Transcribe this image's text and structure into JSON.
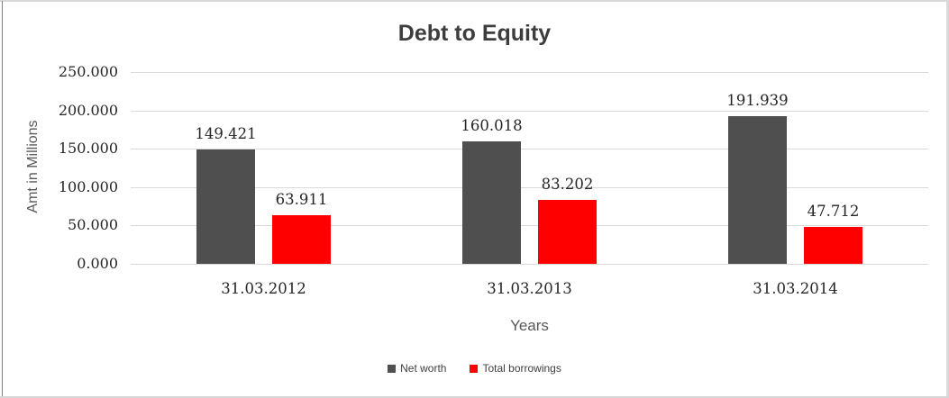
{
  "chart_data": {
    "type": "bar",
    "title": "Debt to Equity",
    "xlabel": "Years",
    "ylabel": "Amt in Millions",
    "categories": [
      "31.03.2012",
      "31.03.2013",
      "31.03.2014"
    ],
    "series": [
      {
        "name": "Net worth",
        "color": "#4f4f4f",
        "values": [
          149.421,
          160.018,
          191.939
        ],
        "labels": [
          "149.421",
          "160.018",
          "191.939"
        ]
      },
      {
        "name": "Total borrowings",
        "color": "#ff0000",
        "values": [
          63.911,
          83.202,
          47.712
        ],
        "labels": [
          "63.911",
          "83.202",
          "47.712"
        ]
      }
    ],
    "ylim": [
      0,
      250
    ],
    "yticks": [
      {
        "value": 0,
        "label": "0.000"
      },
      {
        "value": 50,
        "label": "50.000"
      },
      {
        "value": 100,
        "label": "100.000"
      },
      {
        "value": 150,
        "label": "150.000"
      },
      {
        "value": 200,
        "label": "200.000"
      },
      {
        "value": 250,
        "label": "250.000"
      }
    ],
    "grid": true,
    "legend_position": "bottom",
    "colors": {
      "grid": "#d9d9d9",
      "title_text": "#3d3d3d",
      "tick_text": "#262626",
      "axis_title_text": "#595959",
      "legend_text": "#3f3f3f",
      "frame_border": "#d9d9d9",
      "frame_left_line": "#7f7f7f"
    }
  }
}
